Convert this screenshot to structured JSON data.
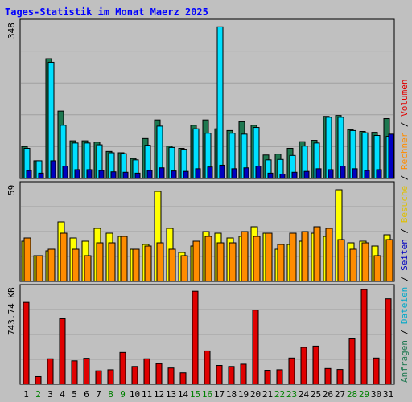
{
  "title": "Tages-Statistik im Monat Maerz 2025",
  "colors": {
    "background": "#c0c0c0",
    "panel_border": "#000000",
    "grid": "#a0a0a0",
    "anfragen": "#1e7850",
    "dateien": "#00e0ff",
    "seiten": "#0000c0",
    "besuche": "#ffff00",
    "rechner": "#ff8c00",
    "volumen": "#e00000",
    "weekend_label": "#008000",
    "weekday_label": "#000000"
  },
  "chart_data": [
    {
      "type": "bar",
      "panel": "requests",
      "ymax_label": "348",
      "ylim": [
        0,
        348
      ],
      "categories": [
        "1",
        "2",
        "3",
        "4",
        "5",
        "6",
        "7",
        "8",
        "9",
        "10",
        "11",
        "12",
        "13",
        "14",
        "15",
        "16",
        "17",
        "18",
        "19",
        "20",
        "21",
        "22",
        "23",
        "24",
        "25",
        "26",
        "27",
        "28",
        "29",
        "30",
        "31"
      ],
      "weekend": [
        false,
        true,
        false,
        false,
        false,
        false,
        false,
        true,
        true,
        false,
        false,
        false,
        false,
        false,
        true,
        true,
        false,
        false,
        false,
        false,
        false,
        true,
        true,
        false,
        false,
        false,
        false,
        true,
        true,
        false,
        false
      ],
      "series": [
        {
          "name": "Anfragen",
          "values": [
            72,
            40,
            270,
            152,
            85,
            85,
            82,
            61,
            58,
            45,
            90,
            132,
            73,
            68,
            120,
            132,
            112,
            108,
            128,
            120,
            53,
            55,
            68,
            83,
            86,
            140,
            142,
            110,
            106,
            104,
            135
          ]
        },
        {
          "name": "Dateien",
          "values": [
            68,
            40,
            262,
            120,
            80,
            80,
            76,
            58,
            56,
            42,
            75,
            118,
            70,
            66,
            112,
            102,
            342,
            102,
            100,
            115,
            42,
            43,
            52,
            73,
            80,
            138,
            138,
            108,
            103,
            97,
            95
          ]
        },
        {
          "name": "Seiten",
          "values": [
            18,
            12,
            40,
            28,
            20,
            20,
            18,
            15,
            14,
            12,
            18,
            24,
            17,
            16,
            22,
            26,
            30,
            22,
            24,
            28,
            12,
            10,
            14,
            16,
            22,
            20,
            28,
            22,
            18,
            20,
            100
          ]
        }
      ]
    },
    {
      "type": "bar",
      "panel": "visits",
      "ymax_label": "59",
      "ylim": [
        0,
        59
      ],
      "categories": [
        "1",
        "2",
        "3",
        "4",
        "5",
        "6",
        "7",
        "8",
        "9",
        "10",
        "11",
        "12",
        "13",
        "14",
        "15",
        "16",
        "17",
        "18",
        "19",
        "20",
        "21",
        "22",
        "23",
        "24",
        "25",
        "26",
        "27",
        "28",
        "29",
        "30",
        "31"
      ],
      "series": [
        {
          "name": "Besuche",
          "values": [
            25,
            16,
            19,
            37,
            27,
            25,
            33,
            30,
            28,
            20,
            23,
            56,
            33,
            18,
            22,
            31,
            30,
            27,
            28,
            34,
            30,
            20,
            23,
            25,
            30,
            28,
            57,
            24,
            25,
            22,
            29
          ]
        },
        {
          "name": "Rechner",
          "values": [
            27,
            16,
            20,
            30,
            20,
            16,
            24,
            24,
            28,
            20,
            22,
            24,
            20,
            16,
            25,
            28,
            24,
            24,
            31,
            28,
            30,
            23,
            30,
            31,
            34,
            33,
            26,
            20,
            24,
            16,
            26
          ]
        }
      ]
    },
    {
      "type": "bar",
      "panel": "volume",
      "ymax_label": "743.74 KB",
      "ylim": [
        0,
        743.74
      ],
      "categories": [
        "1",
        "2",
        "3",
        "4",
        "5",
        "6",
        "7",
        "8",
        "9",
        "10",
        "11",
        "12",
        "13",
        "14",
        "15",
        "16",
        "17",
        "18",
        "19",
        "20",
        "21",
        "22",
        "23",
        "24",
        "25",
        "26",
        "27",
        "28",
        "29",
        "30",
        "31"
      ],
      "series": [
        {
          "name": "Volumen",
          "values": [
            642,
            60,
            200,
            514,
            184,
            204,
            106,
            114,
            250,
            140,
            200,
            162,
            128,
            90,
            730,
            262,
            148,
            140,
            158,
            582,
            110,
            114,
            206,
            290,
            300,
            124,
            116,
            356,
            743,
            206,
            670
          ]
        }
      ]
    }
  ],
  "side_labels": [
    {
      "text": "Anfragen",
      "color": "#1e7850"
    },
    {
      "text": "/",
      "color": "#000000"
    },
    {
      "text": "Dateien",
      "color": "#00a8c8"
    },
    {
      "text": "/",
      "color": "#000000"
    },
    {
      "text": "Seiten",
      "color": "#0000c0"
    },
    {
      "text": "/",
      "color": "#000000"
    },
    {
      "text": "Besuche",
      "color": "#e0c000"
    },
    {
      "text": "/",
      "color": "#000000"
    },
    {
      "text": "Rechner",
      "color": "#ff8c00"
    },
    {
      "text": "/",
      "color": "#000000"
    },
    {
      "text": "Volumen",
      "color": "#e00000"
    }
  ]
}
